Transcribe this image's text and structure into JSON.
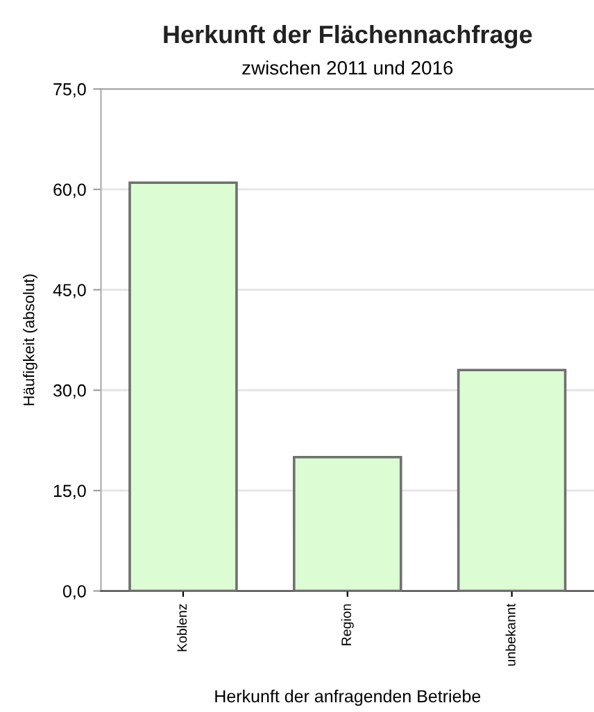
{
  "chart_data": {
    "type": "bar",
    "title": "Herkunft der Flächennachfrage",
    "subtitle": "zwischen 2011 und 2016",
    "xlabel": "Herkunft der anfragenden Betriebe",
    "ylabel": "Häufigkeit (absolut)",
    "categories": [
      "Koblenz",
      "Region",
      "unbekannt"
    ],
    "series": [
      {
        "color": "#dcfcd4",
        "values": [
          61,
          20,
          33
        ]
      }
    ],
    "ylim": [
      0,
      75
    ],
    "yticks": [
      {
        "value": 0,
        "label": "0,0"
      },
      {
        "value": 15,
        "label": "15,0"
      },
      {
        "value": 30,
        "label": "30,0"
      },
      {
        "value": 45,
        "label": "45,0"
      },
      {
        "value": 60,
        "label": "60,0"
      },
      {
        "value": 75,
        "label": "75,0"
      }
    ],
    "grid": "y",
    "legend": false
  }
}
